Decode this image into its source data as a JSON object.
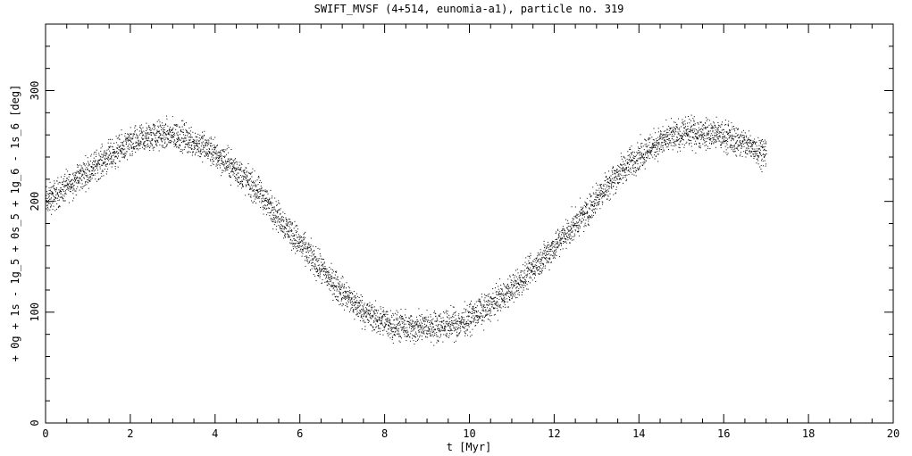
{
  "chart_data": {
    "type": "scatter",
    "title": "SWIFT_MVSF (4+514, eunomia-a1), particle no. 319",
    "xlabel": "t [Myr]",
    "ylabel": "+ 0g + 1s - 1g_5 + 0s_5 + 1g_6 - 1s_6 [deg]",
    "xlim": [
      0,
      20
    ],
    "ylim": [
      0,
      360
    ],
    "x_ticks": [
      "0",
      "2",
      "4",
      "6",
      "8",
      "10",
      "12",
      "14",
      "16",
      "18",
      "20"
    ],
    "y_ticks": [
      "0",
      "100",
      "200",
      "300"
    ],
    "grid": false,
    "series": [
      {
        "x": [
          0.0,
          0.25,
          0.5,
          0.75,
          1.0,
          1.25,
          1.5,
          1.75,
          2.0,
          2.25,
          2.5,
          2.75,
          3.0,
          3.25,
          3.5,
          3.75,
          4.0,
          4.25,
          4.5,
          4.75,
          5.0,
          5.25,
          5.5,
          5.75,
          6.0,
          6.25,
          6.5,
          6.75,
          7.0,
          7.25,
          7.5,
          7.75,
          8.0,
          8.25,
          8.5,
          8.75,
          9.0,
          9.25,
          9.5,
          9.75,
          10.0,
          10.25,
          10.5,
          10.75,
          11.0,
          11.25,
          11.5,
          11.75,
          12.0,
          12.25,
          12.5,
          12.75,
          13.0,
          13.25,
          13.5,
          13.75,
          14.0,
          14.25,
          14.5,
          14.75,
          15.0,
          15.25,
          15.5,
          15.75,
          16.0,
          16.25,
          16.5,
          16.75,
          17.0
        ],
        "y": [
          200,
          207,
          214,
          221,
          228,
          235,
          241,
          247,
          252,
          256,
          259,
          260,
          260,
          258,
          254,
          249,
          243,
          236,
          228,
          219,
          209,
          198,
          186,
          174,
          162,
          150,
          139,
          128,
          118,
          109,
          101,
          95,
          91,
          88,
          86,
          86,
          87,
          88,
          89,
          90,
          95,
          101,
          107,
          114,
          121,
          130,
          140,
          150,
          160,
          170,
          180,
          190,
          204,
          215,
          225,
          234,
          242,
          249,
          254,
          258,
          261,
          262,
          262,
          261,
          259,
          256,
          252,
          248,
          244
        ],
        "spread": 12
      }
    ]
  }
}
